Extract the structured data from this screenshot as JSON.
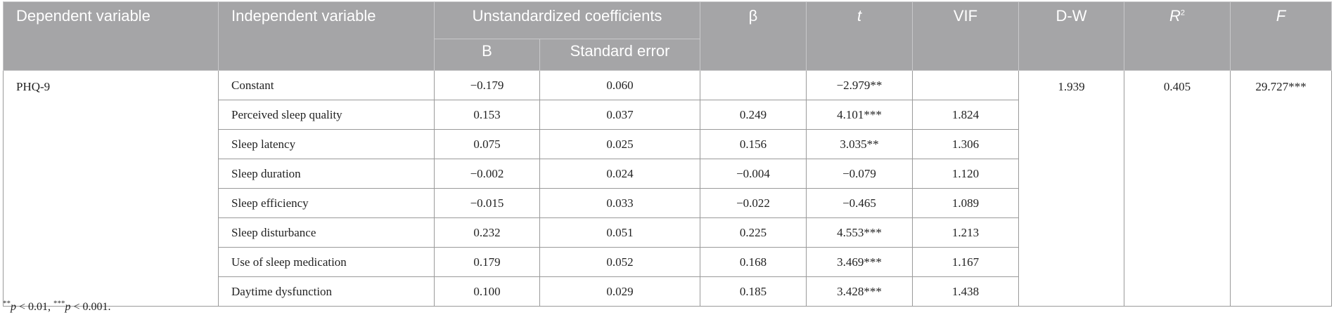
{
  "header": {
    "dependent_variable": "Dependent variable",
    "independent_variable": "Independent variable",
    "unstandardized_coefficients": "Unstandardized coefficients",
    "b": "B",
    "standard_error": "Standard error",
    "beta": "β",
    "t": "t",
    "vif": "VIF",
    "dw": "D-W",
    "r2_base": "R",
    "r2_sup": "2",
    "f": "F"
  },
  "dependent": "PHQ-9",
  "summary": {
    "dw": "1.939",
    "r2": "0.405",
    "f": "29.727***"
  },
  "rows": [
    {
      "var": "Constant",
      "b": "−0.179",
      "se": "0.060",
      "beta": "",
      "t": "−2.979**",
      "vif": ""
    },
    {
      "var": "Perceived sleep quality",
      "b": "0.153",
      "se": "0.037",
      "beta": "0.249",
      "t": "4.101***",
      "vif": "1.824"
    },
    {
      "var": "Sleep latency",
      "b": "0.075",
      "se": "0.025",
      "beta": "0.156",
      "t": "3.035**",
      "vif": "1.306"
    },
    {
      "var": "Sleep duration",
      "b": "−0.002",
      "se": "0.024",
      "beta": "−0.004",
      "t": "−0.079",
      "vif": "1.120"
    },
    {
      "var": "Sleep efficiency",
      "b": "−0.015",
      "se": "0.033",
      "beta": "−0.022",
      "t": "−0.465",
      "vif": "1.089"
    },
    {
      "var": "Sleep disturbance",
      "b": "0.232",
      "se": "0.051",
      "beta": "0.225",
      "t": "4.553***",
      "vif": "1.213"
    },
    {
      "var": "Use of sleep medication",
      "b": "0.179",
      "se": "0.052",
      "beta": "0.168",
      "t": "3.469***",
      "vif": "1.167"
    },
    {
      "var": "Daytime dysfunction",
      "b": "0.100",
      "se": "0.029",
      "beta": "0.185",
      "t": "3.428***",
      "vif": "1.438"
    }
  ],
  "footnote": {
    "s1": "**",
    "p1": "p",
    "t1": " < 0.01, ",
    "s2": "***",
    "p2": "p",
    "t2": " < 0.001."
  },
  "colors": {
    "header_bg": "#a5a5a7",
    "header_text": "#ffffff",
    "border": "#9a9a9a"
  }
}
